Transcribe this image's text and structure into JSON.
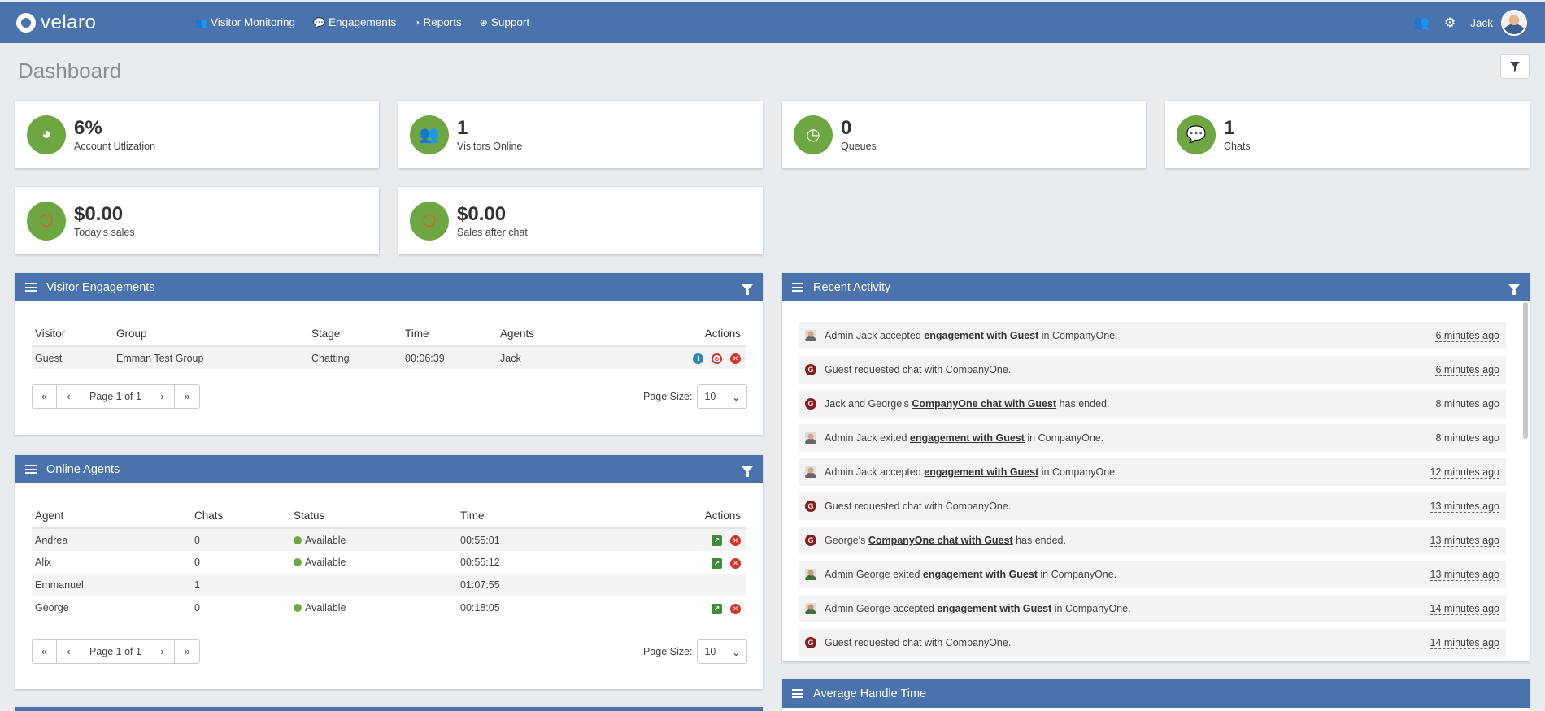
{
  "nav": {
    "brand": "velaro",
    "links": [
      {
        "label": "Visitor Monitoring",
        "icon": "users-icon"
      },
      {
        "label": "Engagements",
        "icon": "chat-bubble-icon"
      },
      {
        "label": "Reports",
        "icon": "pie-chart-icon"
      },
      {
        "label": "Support",
        "icon": "globe-icon"
      }
    ],
    "user": "Jack"
  },
  "page": {
    "title": "Dashboard"
  },
  "stats": [
    {
      "value": "6%",
      "label": "Account Utlization",
      "icon": "gauge-icon"
    },
    {
      "value": "1",
      "label": "Visitors Online",
      "icon": "users-icon"
    },
    {
      "value": "0",
      "label": "Queues",
      "icon": "clock-icon"
    },
    {
      "value": "1",
      "label": "Chats",
      "icon": "chat-bubble-icon"
    },
    {
      "value": "$0.00",
      "label": "Today's sales",
      "icon": "magento-icon"
    },
    {
      "value": "$0.00",
      "label": "Sales after chat",
      "icon": "magento-icon"
    }
  ],
  "visitor_engagements": {
    "title": "Visitor Engagements",
    "columns": [
      "Visitor",
      "Group",
      "Stage",
      "Time",
      "Agents",
      "Actions"
    ],
    "rows": [
      {
        "visitor": "Guest",
        "group": "Emman Test Group",
        "stage": "Chatting",
        "time": "00:06:39",
        "agents": "Jack"
      }
    ],
    "pager": {
      "first": "«",
      "prev": "‹",
      "page": "Page 1 of 1",
      "next": "›",
      "last": "»"
    },
    "page_size_label": "Page Size:",
    "page_size": "10"
  },
  "online_agents": {
    "title": "Online Agents",
    "columns": [
      "Agent",
      "Chats",
      "Status",
      "Time",
      "Actions"
    ],
    "rows": [
      {
        "agent": "Andrea",
        "chats": "0",
        "status": "Available",
        "time": "00:55:01"
      },
      {
        "agent": "Alix",
        "chats": "0",
        "status": "Available",
        "time": "00:55:12"
      },
      {
        "agent": "Emmanuel",
        "chats": "1",
        "status": "",
        "time": "01:07:55"
      },
      {
        "agent": "George",
        "chats": "0",
        "status": "Available",
        "time": "00:18:05"
      }
    ],
    "pager": {
      "first": "«",
      "prev": "‹",
      "page": "Page 1 of 1",
      "next": "›",
      "last": "»"
    },
    "page_size_label": "Page Size:",
    "page_size": "10"
  },
  "recent_activity": {
    "title": "Recent Activity",
    "items": [
      {
        "pre": "Admin Jack accepted ",
        "link": "engagement with Guest",
        "post": " in CompanyOne.",
        "when": "6 minutes ago",
        "avatar": "p"
      },
      {
        "pre": "Guest requested chat with CompanyOne.",
        "link": "",
        "post": "",
        "when": "6 minutes ago",
        "avatar": "g"
      },
      {
        "pre": "Jack and George's ",
        "link": "CompanyOne chat with Guest",
        "post": " has ended.",
        "when": "8 minutes ago",
        "avatar": "g"
      },
      {
        "pre": "Admin Jack exited ",
        "link": "engagement with Guest",
        "post": " in CompanyOne.",
        "when": "8 minutes ago",
        "avatar": "p"
      },
      {
        "pre": "Admin Jack accepted ",
        "link": "engagement with Guest",
        "post": " in CompanyOne.",
        "when": "12 minutes ago",
        "avatar": "p"
      },
      {
        "pre": "Guest requested chat with CompanyOne.",
        "link": "",
        "post": "",
        "when": "13 minutes ago",
        "avatar": "g"
      },
      {
        "pre": "George's ",
        "link": "CompanyOne chat with Guest",
        "post": " has ended.",
        "when": "13 minutes ago",
        "avatar": "g"
      },
      {
        "pre": "Admin George exited ",
        "link": "engagement with Guest",
        "post": " in CompanyOne.",
        "when": "13 minutes ago",
        "avatar": "p2"
      },
      {
        "pre": "Admin George accepted ",
        "link": "engagement with Guest",
        "post": " in CompanyOne.",
        "when": "14 minutes ago",
        "avatar": "p2"
      },
      {
        "pre": "Guest requested chat with CompanyOne.",
        "link": "",
        "post": "",
        "when": "14 minutes ago",
        "avatar": "g"
      }
    ]
  },
  "average_handle_time": {
    "title": "Average Handle Time"
  },
  "colors": {
    "header": "#4a72ad",
    "accent_green": "#6ea742",
    "danger": "#d9302c"
  }
}
